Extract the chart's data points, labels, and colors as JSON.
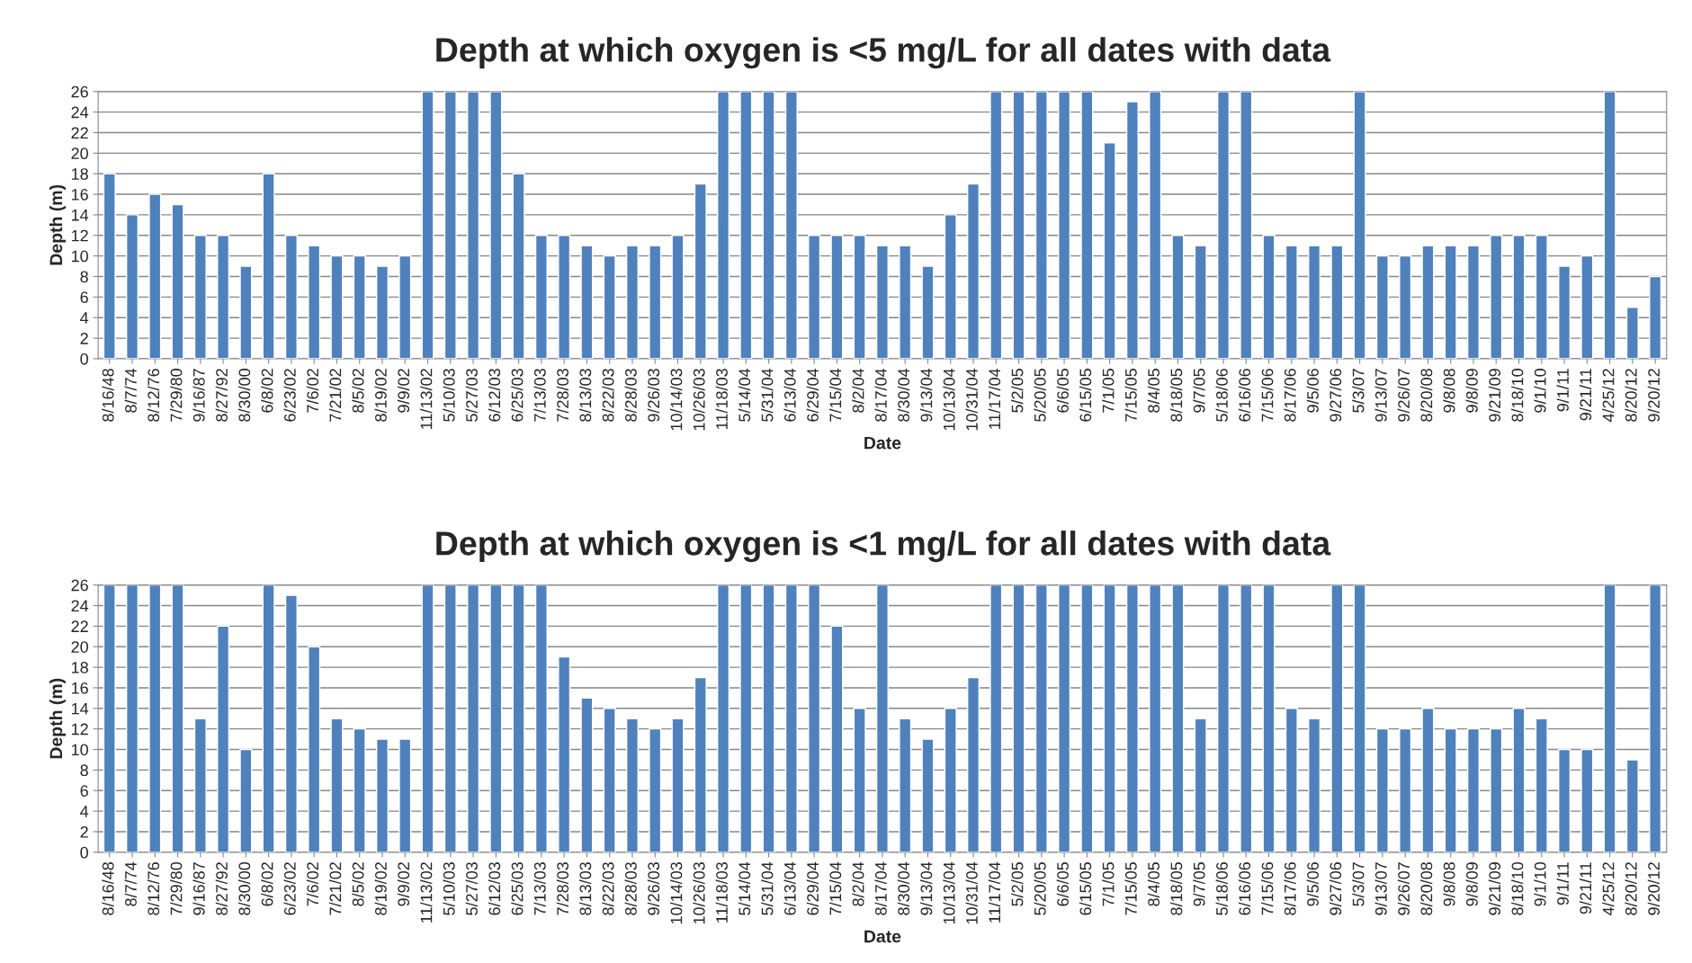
{
  "chart_data": [
    {
      "type": "bar",
      "title": "Depth at which oxygen is <5 mg/L for all dates with data",
      "xlabel": "Date",
      "ylabel": "Depth (m)",
      "color": "#4f81bd",
      "ylim": [
        0,
        26
      ],
      "yticks": [
        0,
        2,
        4,
        6,
        8,
        10,
        12,
        14,
        16,
        18,
        20,
        22,
        24,
        26
      ],
      "grid": "y",
      "categories": [
        "8/16/48",
        "8/7/74",
        "8/12/76",
        "7/29/80",
        "9/16/87",
        "8/27/92",
        "8/30/00",
        "6/8/02",
        "6/23/02",
        "7/6/02",
        "7/21/02",
        "8/5/02",
        "8/19/02",
        "9/9/02",
        "11/13/02",
        "5/10/03",
        "5/27/03",
        "6/12/03",
        "6/25/03",
        "7/13/03",
        "7/28/03",
        "8/13/03",
        "8/22/03",
        "8/28/03",
        "9/26/03",
        "10/14/03",
        "10/26/03",
        "11/18/03",
        "5/14/04",
        "5/31/04",
        "6/13/04",
        "6/29/04",
        "7/15/04",
        "8/2/04",
        "8/17/04",
        "8/30/04",
        "9/13/04",
        "10/13/04",
        "10/31/04",
        "11/17/04",
        "5/2/05",
        "5/20/05",
        "6/6/05",
        "6/15/05",
        "7/1/05",
        "7/15/05",
        "8/4/05",
        "8/18/05",
        "9/7/05",
        "5/18/06",
        "6/16/06",
        "7/15/06",
        "8/17/06",
        "9/5/06",
        "9/27/06",
        "5/3/07",
        "9/13/07",
        "9/26/07",
        "8/20/08",
        "9/8/08",
        "9/8/09",
        "9/21/09",
        "8/18/10",
        "9/1/10",
        "9/1/11",
        "9/21/11",
        "4/25/12",
        "8/20/12",
        "9/20/12"
      ],
      "values": [
        18,
        14,
        16,
        15,
        12,
        12,
        9,
        18,
        12,
        11,
        10,
        10,
        9,
        10,
        26,
        26,
        26,
        26,
        18,
        12,
        12,
        11,
        10,
        11,
        11,
        12,
        17,
        26,
        26,
        26,
        26,
        12,
        12,
        12,
        11,
        11,
        9,
        14,
        17,
        26,
        26,
        26,
        26,
        26,
        21,
        25,
        26,
        12,
        11,
        26,
        26,
        12,
        11,
        11,
        11,
        26,
        10,
        10,
        11,
        11,
        11,
        12,
        12,
        12,
        9,
        10,
        26,
        5,
        8
      ]
    },
    {
      "type": "bar",
      "title": "Depth at which oxygen is <1 mg/L for all dates with data",
      "xlabel": "Date",
      "ylabel": "Depth (m)",
      "color": "#4f81bd",
      "ylim": [
        0,
        26
      ],
      "yticks": [
        0,
        2,
        4,
        6,
        8,
        10,
        12,
        14,
        16,
        18,
        20,
        22,
        24,
        26
      ],
      "grid": "y",
      "categories": [
        "8/16/48",
        "8/7/74",
        "8/12/76",
        "7/29/80",
        "9/16/87",
        "8/27/92",
        "8/30/00",
        "6/8/02",
        "6/23/02",
        "7/6/02",
        "7/21/02",
        "8/5/02",
        "8/19/02",
        "9/9/02",
        "11/13/02",
        "5/10/03",
        "5/27/03",
        "6/12/03",
        "6/25/03",
        "7/13/03",
        "7/28/03",
        "8/13/03",
        "8/22/03",
        "8/28/03",
        "9/26/03",
        "10/14/03",
        "10/26/03",
        "11/18/03",
        "5/14/04",
        "5/31/04",
        "6/13/04",
        "6/29/04",
        "7/15/04",
        "8/2/04",
        "8/17/04",
        "8/30/04",
        "9/13/04",
        "10/13/04",
        "10/31/04",
        "11/17/04",
        "5/2/05",
        "5/20/05",
        "6/6/05",
        "6/15/05",
        "7/1/05",
        "7/15/05",
        "8/4/05",
        "8/18/05",
        "9/7/05",
        "5/18/06",
        "6/16/06",
        "7/15/06",
        "8/17/06",
        "9/5/06",
        "9/27/06",
        "5/3/07",
        "9/13/07",
        "9/26/07",
        "8/20/08",
        "9/8/08",
        "9/8/09",
        "9/21/09",
        "8/18/10",
        "9/1/10",
        "9/1/11",
        "9/21/11",
        "4/25/12",
        "8/20/12",
        "9/20/12"
      ],
      "values": [
        26,
        26,
        26,
        26,
        13,
        22,
        10,
        26,
        25,
        20,
        13,
        12,
        11,
        11,
        26,
        26,
        26,
        26,
        26,
        26,
        19,
        15,
        14,
        13,
        12,
        13,
        17,
        26,
        26,
        26,
        26,
        26,
        22,
        14,
        26,
        13,
        11,
        14,
        17,
        26,
        26,
        26,
        26,
        26,
        26,
        26,
        26,
        26,
        13,
        26,
        26,
        26,
        14,
        13,
        26,
        26,
        12,
        12,
        14,
        12,
        12,
        12,
        14,
        13,
        10,
        10,
        26,
        9,
        26
      ]
    }
  ]
}
